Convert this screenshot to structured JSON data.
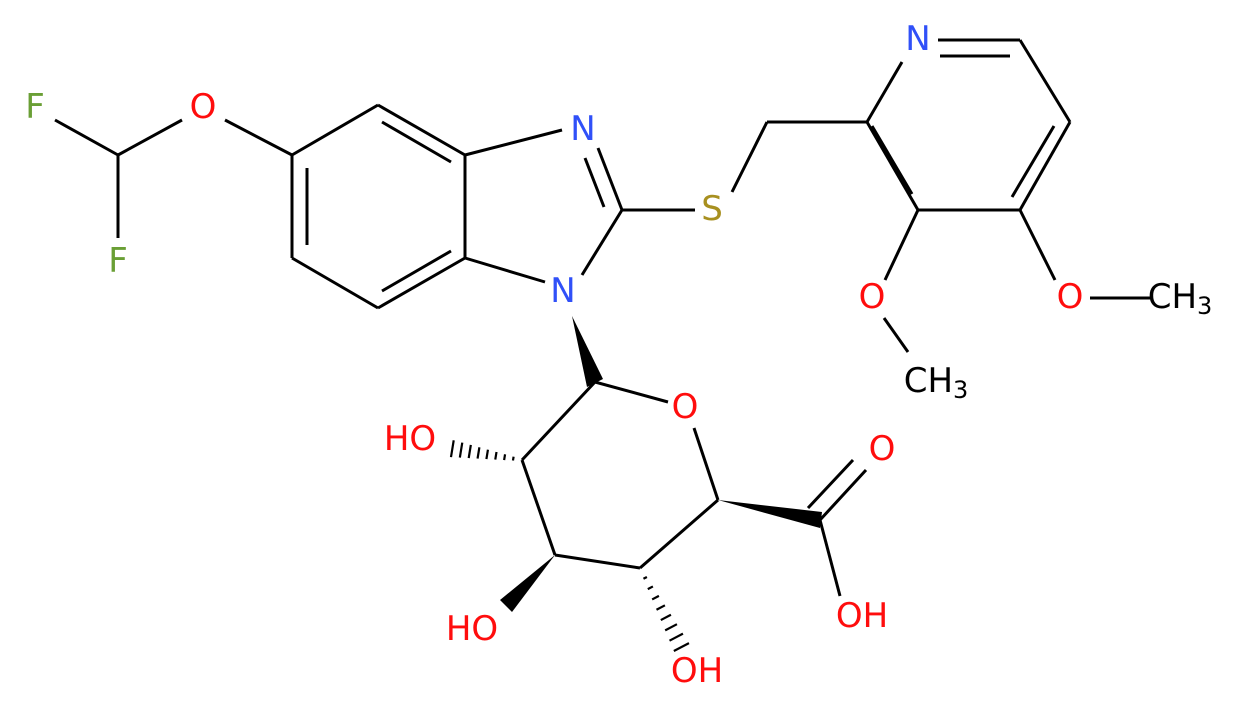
{
  "atoms": [
    {
      "label": "F"
    },
    {
      "label": "F"
    },
    {
      "label": "O"
    },
    {
      "label": "N"
    },
    {
      "label": "N"
    },
    {
      "label": "S"
    },
    {
      "label": "N"
    },
    {
      "label": "O"
    },
    {
      "label": "CH",
      "sub": "3"
    },
    {
      "label": "O"
    },
    {
      "label": "CH",
      "sub": "3"
    },
    {
      "label": "O"
    },
    {
      "label": "HO"
    },
    {
      "label": "O"
    },
    {
      "label": "OH"
    },
    {
      "label": "HO"
    },
    {
      "label": "OH"
    }
  ]
}
